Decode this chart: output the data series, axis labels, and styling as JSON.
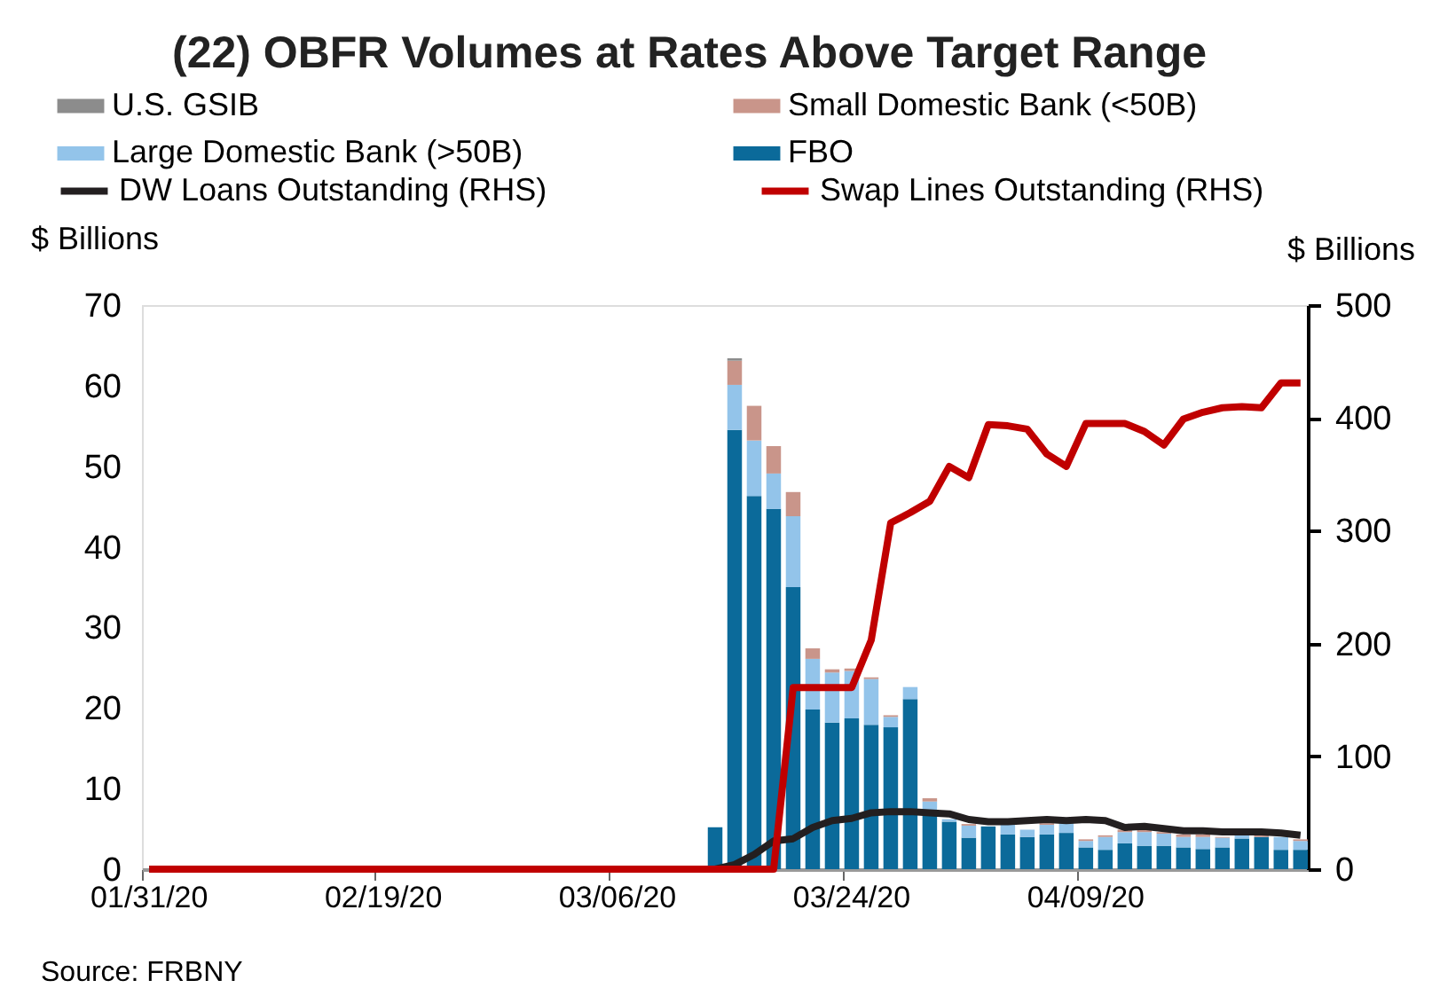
{
  "chart_data": {
    "type": "bar",
    "title": "(22) OBFR Volumes at Rates Above Target Range",
    "ylabel": "$ Billions",
    "y2label": "$ Billions",
    "annotations": [
      "Source: FRBNY"
    ],
    "categories": [
      "01/31/20",
      null,
      null,
      null,
      null,
      null,
      null,
      null,
      null,
      null,
      null,
      null,
      "02/19/20",
      null,
      null,
      null,
      null,
      null,
      null,
      null,
      null,
      null,
      null,
      null,
      "03/06/20",
      null,
      null,
      null,
      null,
      null,
      null,
      null,
      null,
      null,
      null,
      null,
      "03/24/20",
      null,
      null,
      null,
      null,
      null,
      null,
      null,
      null,
      null,
      null,
      null,
      "04/09/20",
      null,
      null,
      null,
      null,
      null,
      null,
      null,
      null,
      null,
      null,
      null
    ],
    "stacked": true,
    "ylim": [
      0,
      70
    ],
    "yticks": [
      0,
      10,
      20,
      30,
      40,
      50,
      60,
      70
    ],
    "y2lim": [
      0,
      500
    ],
    "y2ticks": [
      0,
      100,
      200,
      300,
      400,
      500
    ],
    "grid": false,
    "legend": "top",
    "series": [
      {
        "name": "FBO",
        "color": "#0b6a9a",
        "values": [
          null,
          null,
          null,
          null,
          null,
          null,
          null,
          null,
          null,
          null,
          null,
          null,
          null,
          null,
          null,
          null,
          null,
          null,
          null,
          null,
          null,
          null,
          null,
          null,
          null,
          null,
          null,
          null,
          null,
          5.2,
          54.5,
          46.3,
          44.7,
          35.0,
          19.8,
          18.2,
          18.7,
          17.9,
          17.6,
          21.1,
          7.3,
          5.9,
          3.9,
          5.3,
          4.3,
          4.0,
          4.3,
          4.5,
          2.7,
          2.4,
          3.2,
          2.9,
          2.9,
          2.7,
          2.5,
          2.7,
          3.8,
          4.0,
          2.4,
          2.4
        ]
      },
      {
        "name": "Large Domestic Bank (>50B)",
        "color": "#93c4ea",
        "values": [
          null,
          null,
          null,
          null,
          null,
          null,
          null,
          null,
          null,
          null,
          null,
          null,
          null,
          null,
          null,
          null,
          null,
          null,
          null,
          null,
          null,
          null,
          null,
          null,
          null,
          null,
          null,
          null,
          null,
          0,
          5.6,
          6.9,
          4.4,
          8.8,
          6.3,
          6.2,
          5.9,
          5.7,
          1.3,
          1.5,
          1.1,
          0.3,
          1.5,
          null,
          1.2,
          0.9,
          1.2,
          1.2,
          0.8,
          1.6,
          1.4,
          1.7,
          1.5,
          1.3,
          1.5,
          1.2,
          0.5,
          null,
          1.6,
          1.1
        ]
      },
      {
        "name": "Small Domestic Bank (<50B)",
        "color": "#c9958a",
        "values": [
          null,
          null,
          null,
          null,
          null,
          null,
          null,
          null,
          null,
          null,
          null,
          null,
          null,
          null,
          null,
          null,
          null,
          null,
          null,
          null,
          null,
          null,
          null,
          null,
          null,
          null,
          null,
          null,
          null,
          0,
          3.0,
          4.3,
          3.4,
          3.0,
          1.3,
          0.4,
          0.3,
          0.2,
          0.2,
          0,
          0.4,
          0,
          0.2,
          0,
          0,
          null,
          0.2,
          0,
          0.2,
          0.2,
          0.3,
          0.3,
          0.2,
          0.3,
          0.3,
          0.1,
          0,
          0.2,
          0,
          0.2
        ]
      },
      {
        "name": "U.S. GSIB",
        "color": "#8c8c8c",
        "values": [
          null,
          null,
          null,
          null,
          null,
          null,
          null,
          null,
          null,
          null,
          null,
          null,
          null,
          null,
          null,
          null,
          null,
          null,
          null,
          null,
          null,
          null,
          null,
          null,
          null,
          null,
          null,
          null,
          null,
          0,
          0.3,
          0,
          0,
          0,
          0,
          0,
          0,
          0,
          0,
          0,
          0,
          0,
          0,
          0,
          0,
          0,
          0,
          0,
          0,
          0,
          0,
          0,
          0,
          0,
          0,
          0,
          0,
          0,
          0,
          0
        ]
      },
      {
        "name": "DW Loans Outstanding (RHS)",
        "type": "line",
        "axis": "y2",
        "color": "#231f20",
        "values": [
          0,
          0,
          0,
          0,
          0,
          0,
          0,
          0,
          0,
          0,
          0,
          0,
          0,
          0,
          0,
          0,
          0,
          0,
          0,
          0,
          0,
          0,
          0,
          0,
          0,
          0,
          0,
          0,
          0,
          0,
          4,
          13,
          25,
          27,
          37,
          43,
          45,
          50,
          51,
          51,
          50,
          49,
          44,
          42,
          42,
          43,
          44,
          43,
          44,
          43,
          37,
          38,
          36,
          34,
          34,
          33,
          33,
          33,
          32,
          30
        ]
      },
      {
        "name": "Swap Lines Outstanding (RHS)",
        "type": "line",
        "axis": "y2",
        "color": "#c00000",
        "values": [
          0,
          0,
          0,
          0,
          0,
          0,
          0,
          0,
          0,
          0,
          0,
          0,
          0,
          0,
          0,
          0,
          0,
          0,
          0,
          0,
          0,
          0,
          0,
          0,
          0,
          0,
          0,
          0,
          0,
          0,
          0,
          0,
          0,
          161,
          161,
          161,
          161,
          203,
          307,
          316,
          326,
          357,
          347,
          394,
          393,
          390,
          368,
          357,
          395,
          395,
          395,
          388,
          376,
          399,
          405,
          409,
          410,
          409,
          431,
          431
        ]
      }
    ]
  }
}
